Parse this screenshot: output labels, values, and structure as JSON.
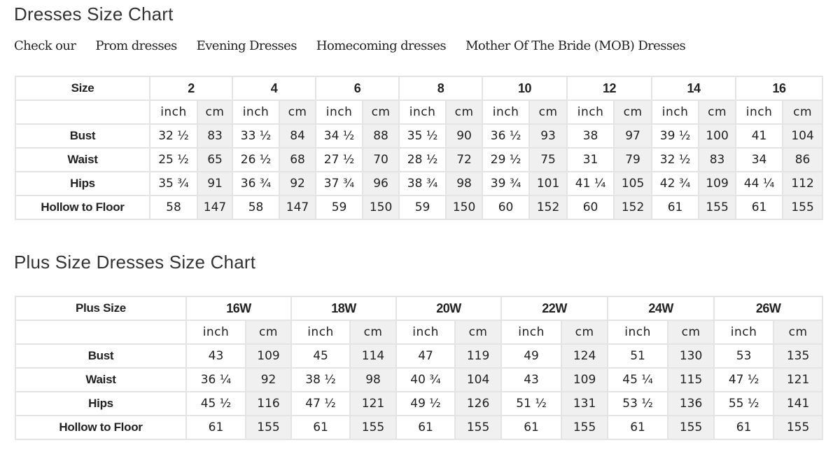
{
  "page": {
    "title": "Dresses Size Chart",
    "links": [
      {
        "label": "Check our",
        "is_link": false
      },
      {
        "label": "Prom dresses",
        "is_link": true
      },
      {
        "label": "Evening Dresses",
        "is_link": true
      },
      {
        "label": "Homecoming dresses",
        "is_link": true
      },
      {
        "label": "Mother Of The Bride (MOB) Dresses",
        "is_link": true
      }
    ]
  },
  "standard_chart": {
    "header_label": "Size",
    "sizes": [
      "2",
      "4",
      "6",
      "8",
      "10",
      "12",
      "14",
      "16"
    ],
    "units": {
      "inch": "inch",
      "cm": "cm"
    },
    "rows": [
      {
        "label": "Bust",
        "values": [
          [
            "32 ½",
            "83"
          ],
          [
            "33 ½",
            "84"
          ],
          [
            "34 ½",
            "88"
          ],
          [
            "35 ½",
            "90"
          ],
          [
            "36 ½",
            "93"
          ],
          [
            "38",
            "97"
          ],
          [
            "39 ½",
            "100"
          ],
          [
            "41",
            "104"
          ]
        ]
      },
      {
        "label": "Waist",
        "values": [
          [
            "25 ½",
            "65"
          ],
          [
            "26 ½",
            "68"
          ],
          [
            "27 ½",
            "70"
          ],
          [
            "28 ½",
            "72"
          ],
          [
            "29 ½",
            "75"
          ],
          [
            "31",
            "79"
          ],
          [
            "32 ½",
            "83"
          ],
          [
            "34",
            "86"
          ]
        ]
      },
      {
        "label": "Hips",
        "values": [
          [
            "35 ¾",
            "91"
          ],
          [
            "36 ¾",
            "92"
          ],
          [
            "37 ¾",
            "96"
          ],
          [
            "38 ¾",
            "98"
          ],
          [
            "39 ¾",
            "101"
          ],
          [
            "41 ¼",
            "105"
          ],
          [
            "42 ¾",
            "109"
          ],
          [
            "44 ¼",
            "112"
          ]
        ]
      },
      {
        "label": "Hollow to Floor",
        "values": [
          [
            "58",
            "147"
          ],
          [
            "58",
            "147"
          ],
          [
            "59",
            "150"
          ],
          [
            "59",
            "150"
          ],
          [
            "60",
            "152"
          ],
          [
            "60",
            "152"
          ],
          [
            "61",
            "155"
          ],
          [
            "61",
            "155"
          ]
        ]
      }
    ]
  },
  "plus_chart": {
    "title": "Plus Size Dresses Size Chart",
    "header_label": "Plus Size",
    "sizes": [
      "16W",
      "18W",
      "20W",
      "22W",
      "24W",
      "26W"
    ],
    "units": {
      "inch": "inch",
      "cm": "cm"
    },
    "rows": [
      {
        "label": "Bust",
        "values": [
          [
            "43",
            "109"
          ],
          [
            "45",
            "114"
          ],
          [
            "47",
            "119"
          ],
          [
            "49",
            "124"
          ],
          [
            "51",
            "130"
          ],
          [
            "53",
            "135"
          ]
        ]
      },
      {
        "label": "Waist",
        "values": [
          [
            "36 ¼",
            "92"
          ],
          [
            "38 ½",
            "98"
          ],
          [
            "40 ¾",
            "104"
          ],
          [
            "43",
            "109"
          ],
          [
            "45 ¼",
            "115"
          ],
          [
            "47 ½",
            "121"
          ]
        ]
      },
      {
        "label": "Hips",
        "values": [
          [
            "45 ½",
            "116"
          ],
          [
            "47 ½",
            "121"
          ],
          [
            "49 ½",
            "126"
          ],
          [
            "51 ½",
            "131"
          ],
          [
            "53 ½",
            "136"
          ],
          [
            "55 ½",
            "141"
          ]
        ]
      },
      {
        "label": "Hollow to Floor",
        "values": [
          [
            "61",
            "155"
          ],
          [
            "61",
            "155"
          ],
          [
            "61",
            "155"
          ],
          [
            "61",
            "155"
          ],
          [
            "61",
            "155"
          ],
          [
            "61",
            "155"
          ]
        ]
      }
    ]
  },
  "colors": {
    "border": "#e4e4e4",
    "cm_shade": "#f0f0f0",
    "text": "#222222"
  }
}
